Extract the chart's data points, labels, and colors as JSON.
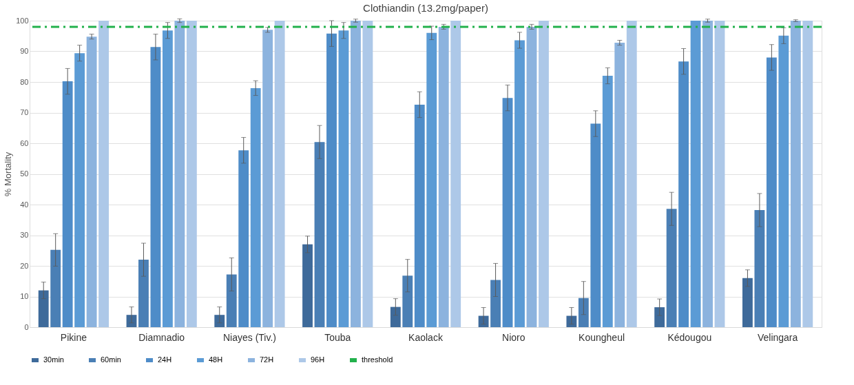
{
  "chart_data": {
    "type": "bar",
    "title": "Clothiandin (13.2mg/paper)",
    "ylabel": "% Mortality",
    "categories": [
      "Pikine",
      "Diamnadio",
      "Niayes (Tiv.)",
      "Touba",
      "Kaolack",
      "Nioro",
      "Koungheul",
      "Kédougou",
      "Velingara"
    ],
    "series": [
      {
        "name": "30min",
        "color": "#3e6a9a",
        "values": [
          12,
          4,
          4,
          27,
          6.6,
          3.7,
          3.7,
          6.5,
          16
        ],
        "errors": [
          2.7,
          2.6,
          2.6,
          2.7,
          2.7,
          2.7,
          2.7,
          2.7,
          2.7
        ]
      },
      {
        "name": "60min",
        "color": "#4a7fb5",
        "values": [
          25.2,
          22,
          17.2,
          60.4,
          16.8,
          15.4,
          9.5,
          38.6,
          38.2
        ],
        "errors": [
          5.3,
          5.4,
          5.4,
          5.4,
          5.3,
          5.4,
          5.4,
          5.4,
          5.4
        ]
      },
      {
        "name": "24H",
        "color": "#4e8cc8",
        "values": [
          80.2,
          91.4,
          57.7,
          95.8,
          72.6,
          74.8,
          66.4,
          86.7,
          88
        ],
        "errors": [
          4.2,
          4.2,
          4.2,
          4.2,
          4.2,
          4.2,
          4.2,
          4.2,
          4.2
        ]
      },
      {
        "name": "48H",
        "color": "#5b9bd5",
        "values": [
          89.4,
          96.8,
          78,
          96.8,
          96,
          93.6,
          82,
          100,
          95.1
        ],
        "errors": [
          2.6,
          2.6,
          2.4,
          2.6,
          2.2,
          2.6,
          2.6,
          null,
          2.6
        ]
      },
      {
        "name": "72H",
        "color": "#8cb3de",
        "values": [
          94.8,
          100,
          97,
          100,
          98,
          98,
          92.8,
          100,
          100
        ],
        "errors": [
          0.8,
          0.6,
          0.8,
          0.5,
          0.8,
          0.8,
          0.8,
          0.5,
          0.3
        ]
      },
      {
        "name": "96H",
        "color": "#adc8e8",
        "values": [
          100,
          100,
          100,
          100,
          100,
          100,
          100,
          100,
          100
        ]
      }
    ],
    "ylim": [
      0,
      100
    ],
    "yticks": [
      0,
      10,
      20,
      30,
      40,
      50,
      60,
      70,
      80,
      90,
      100
    ],
    "grid": "y",
    "legend": "bottom",
    "ref_lines": [
      {
        "axis": "y",
        "value": 98,
        "label": "threshold",
        "color": "#22b14c",
        "line_style": "dashdot"
      }
    ]
  }
}
